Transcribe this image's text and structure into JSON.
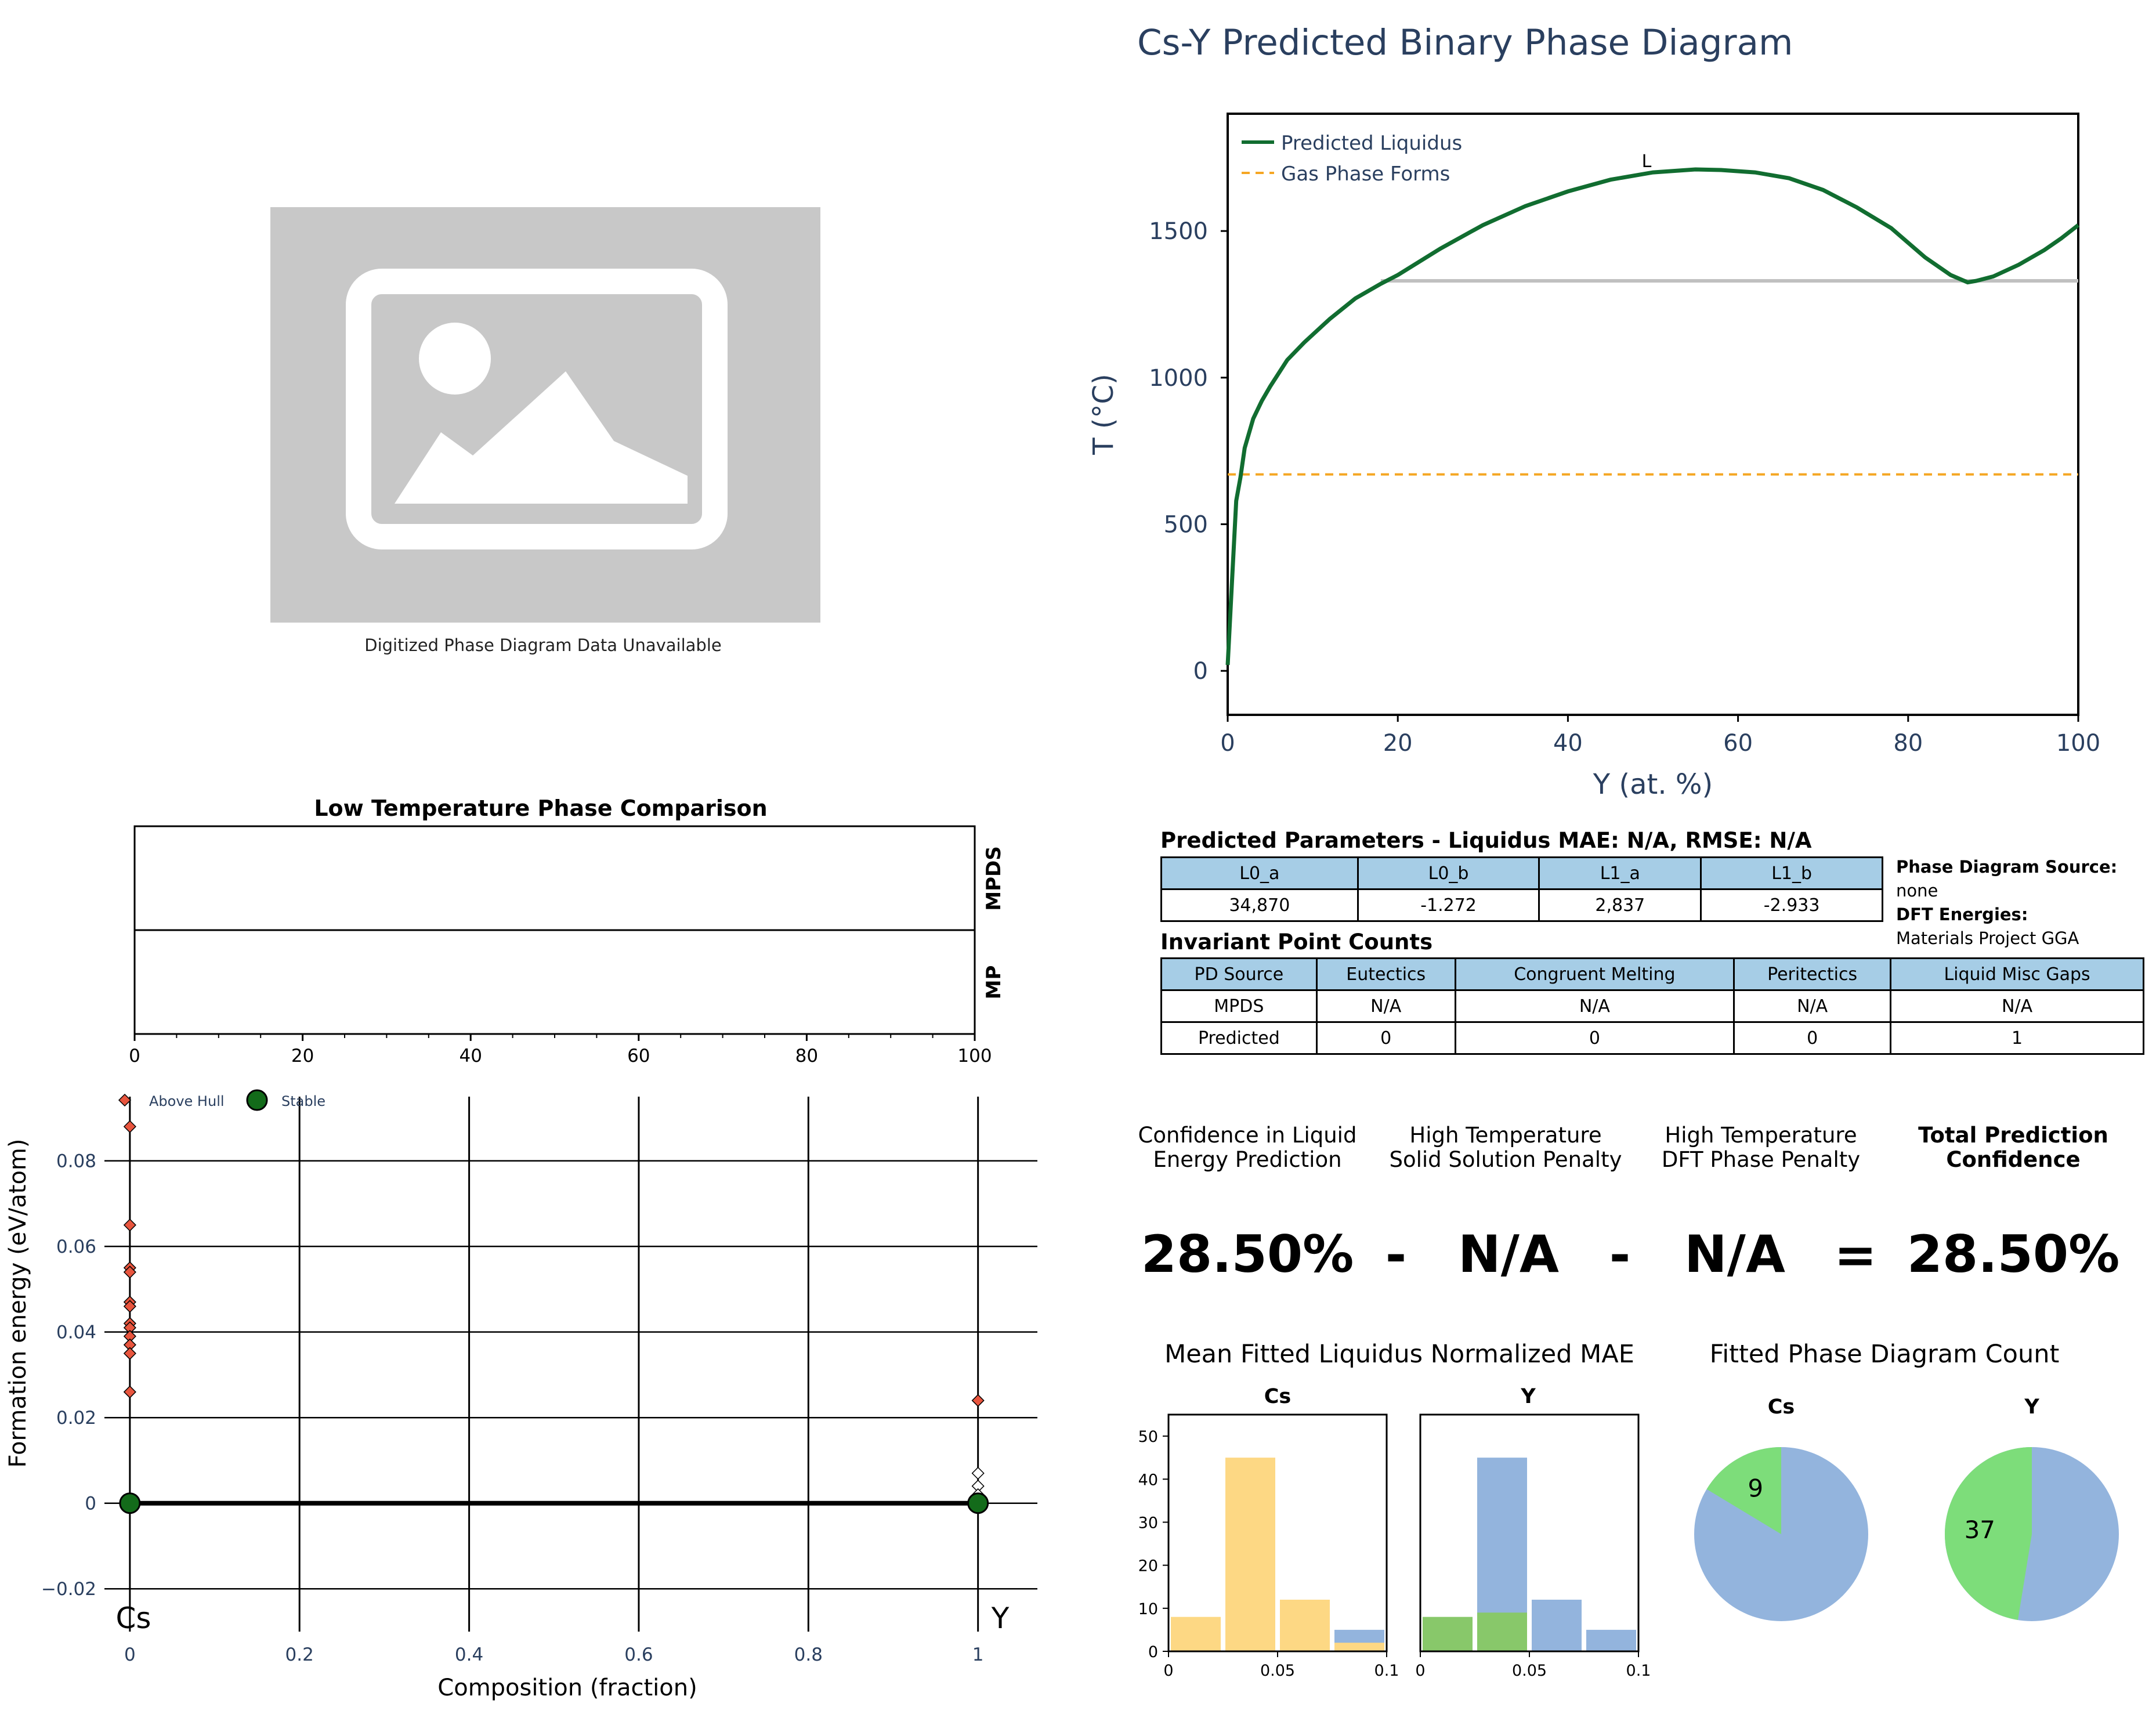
{
  "placeholder_caption": "Digitized Phase Diagram Data Unavailable",
  "phase_diagram": {
    "title": "Cs-Y Predicted Binary Phase Diagram",
    "xlabel": "Y (at. %)",
    "ylabel": "T (°C)",
    "xlim": [
      0,
      100
    ],
    "ylim": [
      -150,
      1900
    ],
    "xticks": [
      "0",
      "20",
      "40",
      "60",
      "80",
      "100"
    ],
    "yticks": [
      "0",
      "500",
      "1000",
      "1500"
    ],
    "legend": [
      "Predicted Liquidus",
      "Gas Phase Forms"
    ],
    "liquid_label": "L",
    "liquidus": {
      "x": [
        0,
        0.5,
        1,
        1.5,
        2,
        3,
        4,
        5,
        7,
        9,
        12,
        15,
        18,
        20,
        25,
        30,
        35,
        40,
        45,
        50,
        55,
        58,
        62,
        66,
        70,
        74,
        78,
        82,
        85,
        87,
        88,
        90,
        93,
        96,
        98,
        100
      ],
      "y": [
        20,
        300,
        580,
        660,
        760,
        860,
        920,
        970,
        1060,
        1120,
        1200,
        1270,
        1320,
        1350,
        1440,
        1520,
        1585,
        1635,
        1675,
        1700,
        1710,
        1708,
        1700,
        1680,
        1640,
        1580,
        1510,
        1410,
        1350,
        1325,
        1330,
        1345,
        1385,
        1435,
        1475,
        1520
      ]
    },
    "solidus_line": {
      "x": [
        18,
        100
      ],
      "y": [
        1330,
        1330
      ]
    },
    "gas_line": {
      "y": 670
    }
  },
  "low_temp": {
    "title": "Low Temperature Phase Comparison",
    "rows": [
      "MPDS",
      "MP"
    ],
    "xticks": [
      "0",
      "20",
      "40",
      "60",
      "80",
      "100"
    ]
  },
  "hull": {
    "xlabel": "Composition (fraction)",
    "ylabel": "Formation energy (eV/atom)",
    "xlim": [
      -0.03,
      1.07
    ],
    "ylim": [
      -0.03,
      0.095
    ],
    "xticks": [
      "0",
      "0.2",
      "0.4",
      "0.6",
      "0.8",
      "1"
    ],
    "yticks": [
      "−0.02",
      "0",
      "0.02",
      "0.04",
      "0.06",
      "0.08"
    ],
    "legend": [
      "Above Hull",
      "Stable"
    ],
    "end_labels": [
      "Cs",
      "Y"
    ],
    "above_hull": [
      {
        "x": 0,
        "y": 0.088
      },
      {
        "x": 0,
        "y": 0.065
      },
      {
        "x": 0,
        "y": 0.055
      },
      {
        "x": 0,
        "y": 0.054
      },
      {
        "x": 0,
        "y": 0.047
      },
      {
        "x": 0,
        "y": 0.046
      },
      {
        "x": 0,
        "y": 0.042
      },
      {
        "x": 0,
        "y": 0.041
      },
      {
        "x": 0,
        "y": 0.039
      },
      {
        "x": 0,
        "y": 0.037
      },
      {
        "x": 0,
        "y": 0.035
      },
      {
        "x": 0,
        "y": 0.026
      },
      {
        "x": 1,
        "y": 0.024
      },
      {
        "x": 1,
        "y": 0.007
      },
      {
        "x": 1,
        "y": 0.004
      },
      {
        "x": 1,
        "y": 0.002
      }
    ],
    "stable": [
      {
        "x": 0,
        "y": 0
      },
      {
        "x": 1,
        "y": 0
      }
    ]
  },
  "params_table": {
    "title": "Predicted Parameters - Liquidus MAE: N/A, RMSE: N/A",
    "headers": [
      "L0_a",
      "L0_b",
      "L1_a",
      "L1_b"
    ],
    "values": [
      "34,870",
      "-1.272",
      "2,837",
      "-2.933"
    ]
  },
  "side_info": {
    "source_label": "Phase Diagram Source:",
    "source_value": "none",
    "dft_label": "DFT Energies:",
    "dft_value": "Materials Project GGA"
  },
  "invariant_table": {
    "title": "Invariant Point Counts",
    "headers": [
      "PD Source",
      "Eutectics",
      "Congruent Melting",
      "Peritectics",
      "Liquid Misc Gaps"
    ],
    "rows": [
      [
        "MPDS",
        "N/A",
        "N/A",
        "N/A",
        "N/A"
      ],
      [
        "Predicted",
        "0",
        "0",
        "0",
        "1"
      ]
    ]
  },
  "confidence": {
    "labels": [
      "Confidence in Liquid Energy Prediction",
      "High Temperature Solid Solution Penalty",
      "High Temperature DFT Phase Penalty",
      "Total Prediction Confidence"
    ],
    "values": [
      "28.50%",
      "N/A",
      "N/A",
      "28.50%"
    ],
    "operators": [
      "-",
      "-",
      "="
    ]
  },
  "mae_hist": {
    "title": "Mean Fitted Liquidus Normalized MAE",
    "panels": [
      "Cs",
      "Y"
    ],
    "xlim": [
      0,
      0.1
    ],
    "ylim": [
      0,
      55
    ],
    "xticks": [
      "0",
      "0.05",
      "0.1"
    ],
    "yticks": [
      "0",
      "10",
      "20",
      "30",
      "40",
      "50"
    ],
    "bin_edges": [
      0,
      0.025,
      0.05,
      0.075,
      0.1
    ],
    "Cs": {
      "highlight": [
        8,
        45,
        12,
        2
      ],
      "background": [
        0,
        0,
        0,
        5
      ],
      "highlight_color": "#fdd884"
    },
    "Y": {
      "highlight": [
        8,
        9,
        0,
        0
      ],
      "background": [
        0,
        45,
        12,
        5
      ],
      "highlight_color": "#88c86a"
    },
    "background_color": "#93b4dd"
  },
  "pd_count": {
    "title": "Fitted Phase Diagram Count",
    "panels": [
      {
        "name": "Cs",
        "count": 9,
        "label": "9",
        "total": 55
      },
      {
        "name": "Y",
        "count": 37,
        "label": "37",
        "total": 78
      }
    ],
    "highlight_color": "#7ddd7a",
    "rest_color": "#93b4dd"
  },
  "colors": {
    "liquidus": "#116d30",
    "gas": "#f5a623",
    "solidus": "#c0c0c0",
    "axis_text": "#2a3f5f",
    "above_hull": "#e8553e",
    "stable": "#136b1a",
    "table_header": "#a6cde6"
  }
}
